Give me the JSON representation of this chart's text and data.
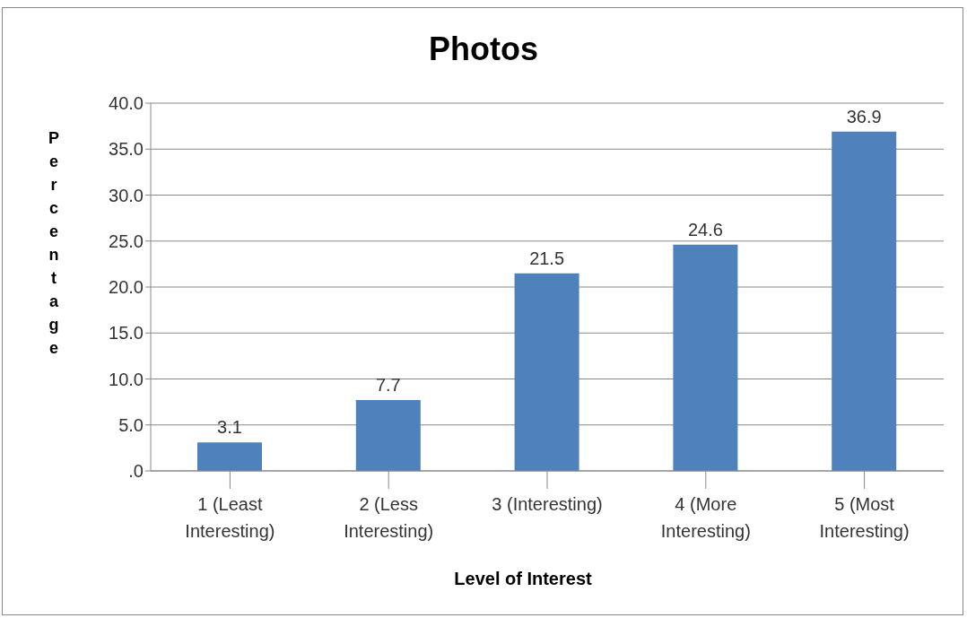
{
  "chart_data": {
    "type": "bar",
    "title": "Photos",
    "xlabel": "Level of Interest",
    "ylabel": "Percentage",
    "categories": [
      "1 (Least Interesting)",
      "2 (Less Interesting)",
      "3 (Interesting)",
      "4 (More Interesting)",
      "5 (Most Interesting)"
    ],
    "values": [
      3.1,
      7.7,
      21.5,
      24.6,
      36.9
    ],
    "color": "#4f81bd",
    "ylim": [
      0,
      40
    ],
    "yticks": [
      {
        "value": 0,
        "label": ".0"
      },
      {
        "value": 5,
        "label": "5.0"
      },
      {
        "value": 10,
        "label": "10.0"
      },
      {
        "value": 15,
        "label": "15.0"
      },
      {
        "value": 20,
        "label": "20.0"
      },
      {
        "value": 25,
        "label": "25.0"
      },
      {
        "value": 30,
        "label": "30.0"
      },
      {
        "value": 35,
        "label": "35.0"
      },
      {
        "value": 40,
        "label": "40.0"
      }
    ],
    "grid": "y",
    "data_labels": true,
    "legend": false
  }
}
